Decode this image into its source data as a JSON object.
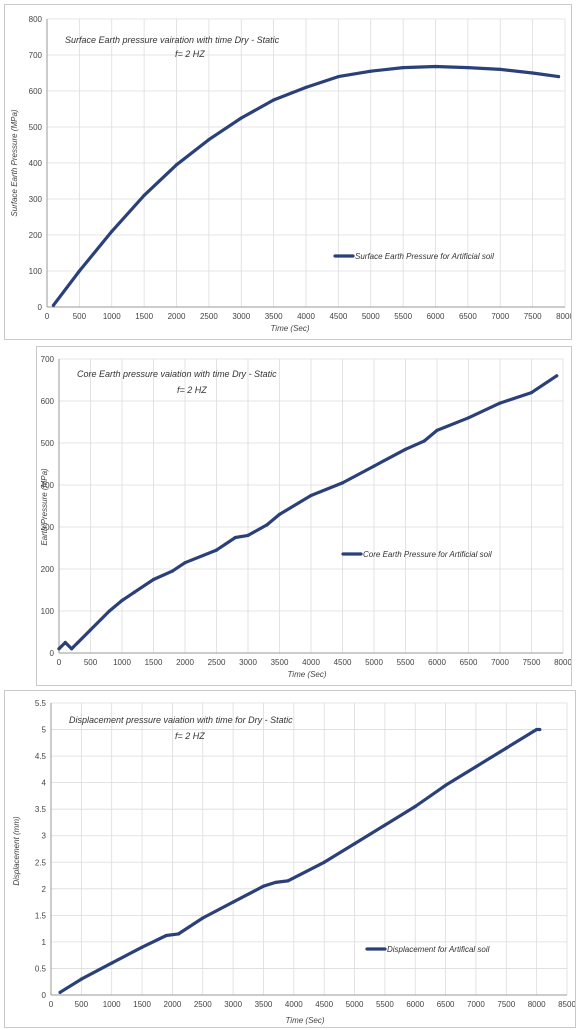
{
  "chart_data": [
    {
      "type": "line",
      "title": "Surface Earth pressure vairation with time Dry - Static",
      "subtitle": "f= 2 HZ",
      "xlabel": "Time (Sec)",
      "ylabel": "Surface Earth Pressure (MPa)",
      "xlim": [
        0,
        8000
      ],
      "ylim": [
        0,
        800
      ],
      "xticks": [
        0,
        500,
        1000,
        1500,
        2000,
        2500,
        3000,
        3500,
        4000,
        4500,
        5000,
        5500,
        6000,
        6500,
        7000,
        7500,
        8000
      ],
      "yticks": [
        0,
        100,
        200,
        300,
        400,
        500,
        600,
        700,
        800
      ],
      "grid": true,
      "legend_position": "right",
      "series": [
        {
          "name": "Surface Earth Pressure for Artificial soil",
          "color": "#2b4079",
          "x": [
            100,
            500,
            1000,
            1500,
            2000,
            2500,
            3000,
            3500,
            4000,
            4500,
            5000,
            5500,
            6000,
            6500,
            7000,
            7500,
            7900
          ],
          "y": [
            5,
            100,
            210,
            310,
            395,
            465,
            525,
            575,
            610,
            640,
            655,
            665,
            668,
            665,
            660,
            650,
            640
          ]
        }
      ]
    },
    {
      "type": "line",
      "title": "Core Earth pressure vaiation with time Dry - Static",
      "subtitle": "f= 2 HZ",
      "xlabel": "Time (Sec)",
      "ylabel": "Earth Pressure (MPa)",
      "xlim": [
        0,
        8000
      ],
      "ylim": [
        0,
        700
      ],
      "xticks": [
        0,
        500,
        1000,
        1500,
        2000,
        2500,
        3000,
        3500,
        4000,
        4500,
        5000,
        5500,
        6000,
        6500,
        7000,
        7500,
        8000
      ],
      "yticks": [
        0,
        100,
        200,
        300,
        400,
        500,
        600,
        700
      ],
      "grid": true,
      "legend_position": "right",
      "series": [
        {
          "name": "Core Earth Pressure for Artificial soil",
          "color": "#2b4079",
          "x": [
            0,
            100,
            200,
            300,
            500,
            800,
            1000,
            1200,
            1500,
            1800,
            2000,
            2500,
            2800,
            3000,
            3300,
            3500,
            4000,
            4500,
            5000,
            5500,
            5800,
            6000,
            6500,
            7000,
            7500,
            7900
          ],
          "y": [
            10,
            25,
            10,
            25,
            55,
            100,
            125,
            145,
            175,
            195,
            215,
            245,
            275,
            280,
            305,
            330,
            375,
            405,
            445,
            485,
            505,
            530,
            560,
            595,
            620,
            660
          ]
        }
      ]
    },
    {
      "type": "line",
      "title": "Displacement pressure vaiation with time for Dry - Static",
      "subtitle": "f= 2 HZ",
      "xlabel": "Time (Sec)",
      "ylabel": "Displacement (mm)",
      "xlim": [
        0,
        8500
      ],
      "ylim": [
        0,
        5.5
      ],
      "xticks": [
        0,
        500,
        1000,
        1500,
        2000,
        2500,
        3000,
        3500,
        4000,
        4500,
        5000,
        5500,
        6000,
        6500,
        7000,
        7500,
        8000,
        8500
      ],
      "yticks": [
        0,
        0.5,
        1,
        1.5,
        2,
        2.5,
        3,
        3.5,
        4,
        4.5,
        5,
        5.5
      ],
      "grid": true,
      "legend_position": "bottom-right",
      "series": [
        {
          "name": "Displacement for Artifical soil",
          "color": "#2b4079",
          "x": [
            150,
            500,
            1000,
            1500,
            1900,
            2100,
            2500,
            3000,
            3500,
            3700,
            3900,
            4500,
            5000,
            5500,
            6000,
            6500,
            7000,
            7500,
            8000,
            8050
          ],
          "y": [
            0.05,
            0.3,
            0.6,
            0.9,
            1.12,
            1.15,
            1.45,
            1.75,
            2.05,
            2.12,
            2.15,
            2.5,
            2.85,
            3.2,
            3.55,
            3.95,
            4.3,
            4.65,
            5.0,
            5.0
          ]
        }
      ]
    }
  ]
}
